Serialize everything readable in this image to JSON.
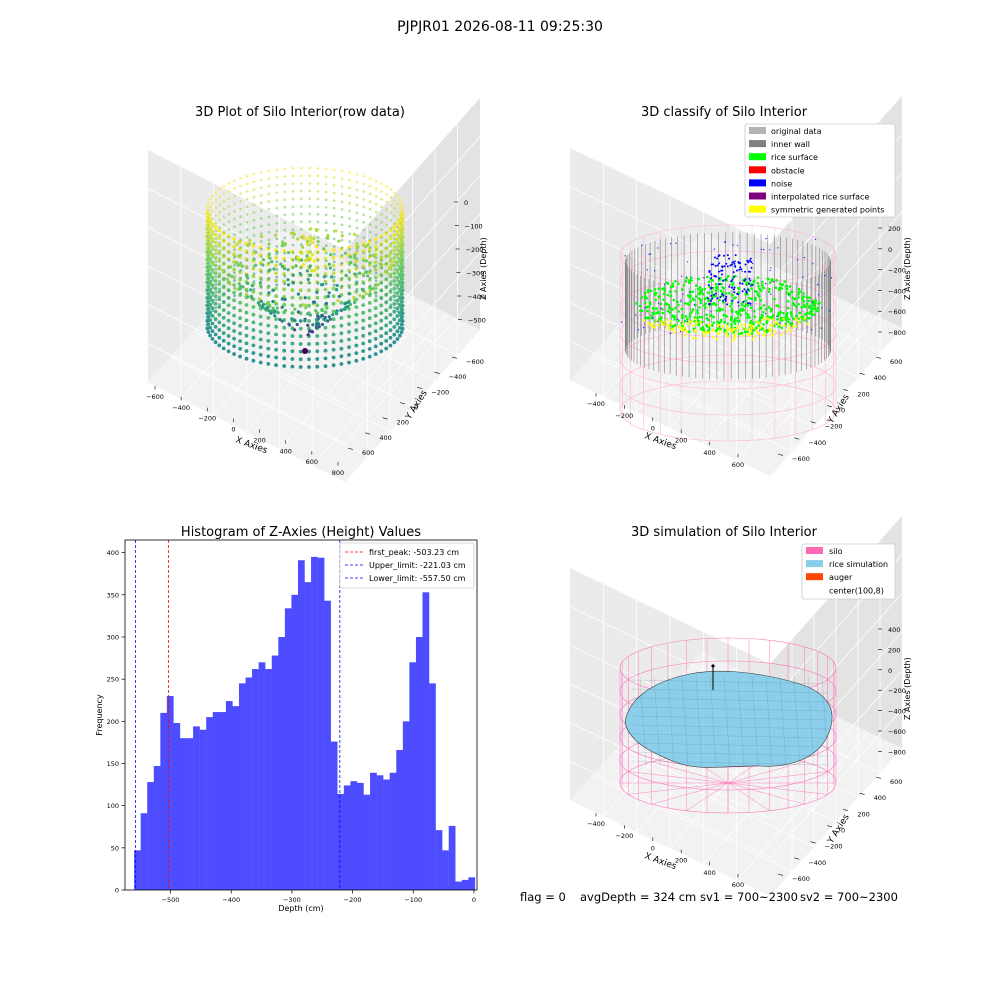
{
  "figure": {
    "suptitle": "PJPJR01 2026-08-11 09:25:30",
    "footer": {
      "flag": "flag = 0",
      "avg_depth": "avgDepth = 324 cm",
      "sv1": "sv1 = 700~2300",
      "sv2": "sv2 = 700~2300"
    }
  },
  "chart_data": [
    {
      "type": "scatter",
      "id": "raw",
      "title": "3D Plot of Silo Interior(row data)",
      "xlabel": "X Axies",
      "ylabel": "Y Axies",
      "zlabel": "Z Axies (Depth)",
      "xticks": [
        "−600",
        "−400",
        "−200",
        "0",
        "200",
        "400",
        "600",
        "800"
      ],
      "yticks": [
        "−600",
        "−400",
        "−200",
        "0",
        "200",
        "400",
        "600"
      ],
      "zticks": [
        "0",
        "−100",
        "−200",
        "−300",
        "−400",
        "−500"
      ],
      "colormap": [
        "#440154",
        "#3b528b",
        "#21918c",
        "#5ec962",
        "#fde725"
      ]
    },
    {
      "type": "scatter",
      "id": "classify",
      "title": "3D classify of Silo Interior",
      "xlabel": "X Axies",
      "ylabel": "Y Axies",
      "zlabel": "Z Axies (Depth)",
      "xticks": [
        "−400",
        "−200",
        "0",
        "200",
        "400",
        "600"
      ],
      "yticks": [
        "−600",
        "−400",
        "−200",
        "0",
        "200",
        "400",
        "600"
      ],
      "zticks": [
        "200",
        "0",
        "−200",
        "−400",
        "−600",
        "−800"
      ],
      "legend": {
        "position": "upper right",
        "entries": [
          {
            "label": "original data",
            "color": "#b3b3b3"
          },
          {
            "label": "inner wall",
            "color": "#808080"
          },
          {
            "label": "rice surface",
            "color": "#00ff00"
          },
          {
            "label": "obstacle",
            "color": "#ff0000"
          },
          {
            "label": "noise",
            "color": "#0000ff"
          },
          {
            "label": "interpolated rice surface",
            "color": "#800080"
          },
          {
            "label": "symmetric generated points",
            "color": "#ffff00"
          }
        ]
      }
    },
    {
      "type": "bar",
      "id": "hist",
      "title": "Histogram of Z-Axies (Height) Values",
      "xlabel": "Depth (cm)",
      "ylabel": "Frequency",
      "xlim": [
        -575,
        5
      ],
      "ylim": [
        0,
        415
      ],
      "xticks": [
        -500,
        -400,
        -300,
        -200,
        -100,
        0
      ],
      "yticks": [
        0,
        50,
        100,
        150,
        200,
        250,
        300,
        350,
        400
      ],
      "bar_color": "#4d4dff",
      "bin_start": -560,
      "bin_width": 10.8,
      "values": [
        47,
        91,
        128,
        147,
        210,
        230,
        198,
        180,
        180,
        194,
        190,
        205,
        211,
        211,
        224,
        218,
        245,
        252,
        262,
        270,
        262,
        278,
        300,
        334,
        350,
        391,
        365,
        395,
        394,
        343,
        176,
        114,
        124,
        129,
        127,
        113,
        139,
        136,
        131,
        139,
        166,
        200,
        270,
        300,
        353,
        245,
        71,
        47,
        76,
        10,
        12,
        15
      ],
      "vlines": [
        {
          "label": "first_peak: -503.23 cm",
          "x": -503.23,
          "color": "#ff0000"
        },
        {
          "label": "Upper_limit: -221.03 cm",
          "x": -221.03,
          "color": "#0000ff"
        },
        {
          "label": "Lower_limit: -557.50 cm",
          "x": -557.5,
          "color": "#0000ff"
        }
      ],
      "legend": {
        "position": "upper right"
      }
    },
    {
      "type": "scatter",
      "id": "simulation",
      "title": "3D simulation of Silo Interior",
      "xlabel": "X Axies",
      "ylabel": "Y Axies",
      "zlabel": "Z Axies (Depth)",
      "xticks": [
        "−400",
        "−200",
        "0",
        "200",
        "400",
        "600"
      ],
      "yticks": [
        "−600",
        "−400",
        "−200",
        "0",
        "200",
        "400",
        "600"
      ],
      "zticks": [
        "400",
        "200",
        "0",
        "−200",
        "−400",
        "−600",
        "−800"
      ],
      "legend": {
        "position": "upper right",
        "entries": [
          {
            "label": "silo",
            "color": "#ff69b4"
          },
          {
            "label": "rice simulation",
            "color": "#87ceeb"
          },
          {
            "label": "auger",
            "color": "#ff4500"
          },
          {
            "label": "center(100,8)",
            "color": "#ffffff"
          }
        ]
      }
    }
  ]
}
